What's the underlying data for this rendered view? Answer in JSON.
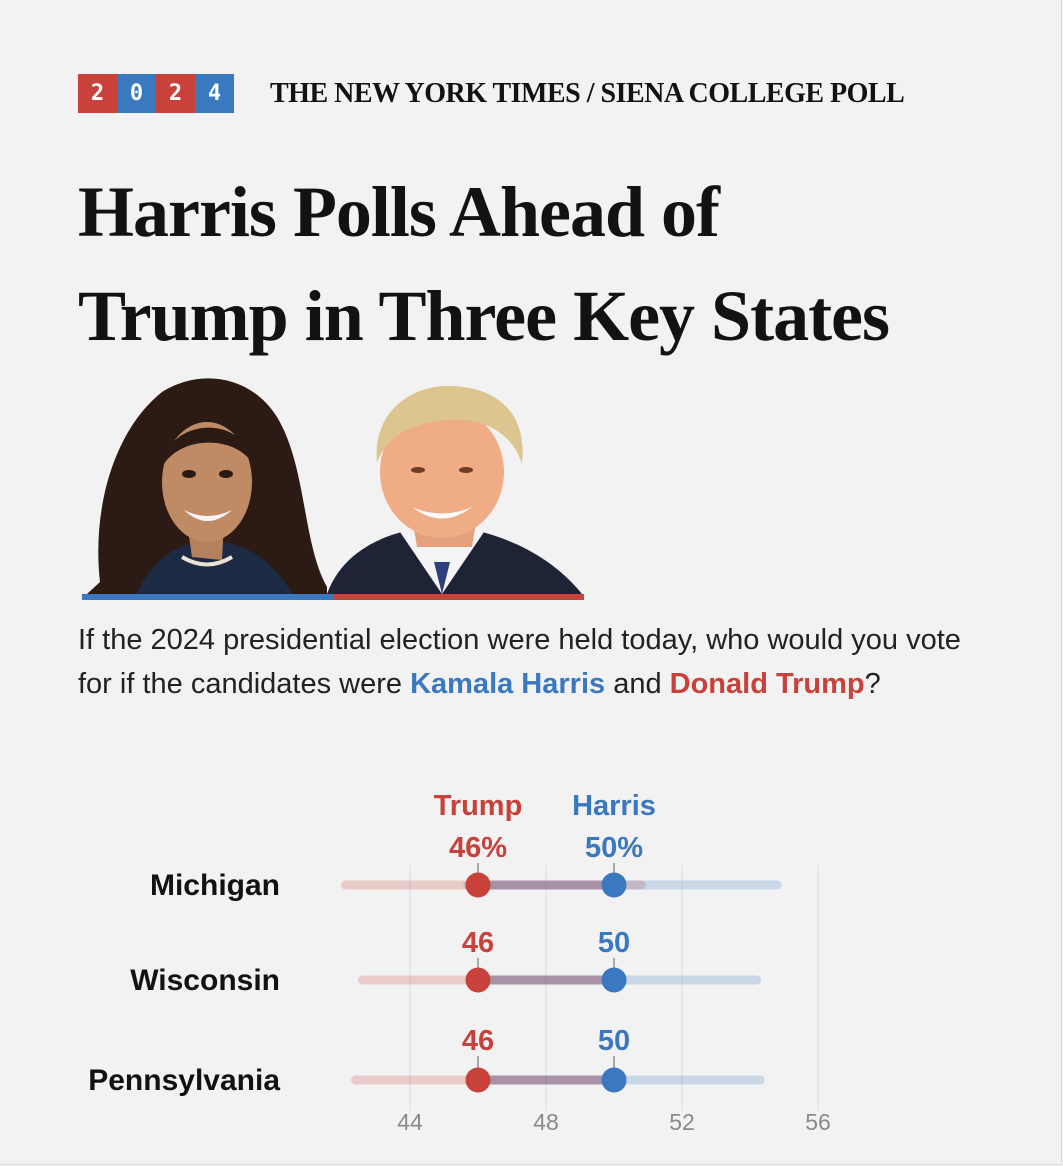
{
  "badge": {
    "digits": [
      "2",
      "0",
      "2",
      "4"
    ]
  },
  "kicker": "THE NEW YORK TIMES / SIENA COLLEGE POLL",
  "headline": {
    "line1": "Harris Polls Ahead of",
    "line2": "Trump in Three Key States"
  },
  "photos": {
    "left": {
      "name": "Kamala Harris",
      "icon": "harris-portrait"
    },
    "right": {
      "name": "Donald Trump",
      "icon": "trump-portrait"
    }
  },
  "question": {
    "part1": "If the 2024 presidential election were held today, who would you vote for if the candidates were ",
    "harris_name": "Kamala Harris",
    "and": " and ",
    "trump_name": "Donald Trump",
    "end": "?"
  },
  "colors": {
    "trump": "#c8423b",
    "harris": "#3a78bf",
    "background": "#f2f2f2"
  },
  "chart_data": {
    "type": "scatter",
    "title": "",
    "xlabel": "",
    "ylabel": "",
    "xlim": [
      42,
      57
    ],
    "x_ticks": [
      44,
      48,
      52,
      56
    ],
    "grid": true,
    "categories": [
      "Michigan",
      "Wisconsin",
      "Pennsylvania"
    ],
    "series": [
      {
        "name": "Trump",
        "color": "#c8423b",
        "values": [
          46,
          46,
          46
        ],
        "labels": [
          "46%",
          "46",
          "46"
        ],
        "range": [
          [
            42.1,
            50.8
          ],
          [
            42.6,
            50.0
          ],
          [
            42.4,
            50.0
          ]
        ]
      },
      {
        "name": "Harris",
        "color": "#3a78bf",
        "values": [
          50,
          50,
          50
        ],
        "labels": [
          "50%",
          "50",
          "50"
        ],
        "range": [
          [
            45.7,
            54.8
          ],
          [
            46.0,
            54.2
          ],
          [
            46.0,
            54.3
          ]
        ]
      }
    ]
  }
}
